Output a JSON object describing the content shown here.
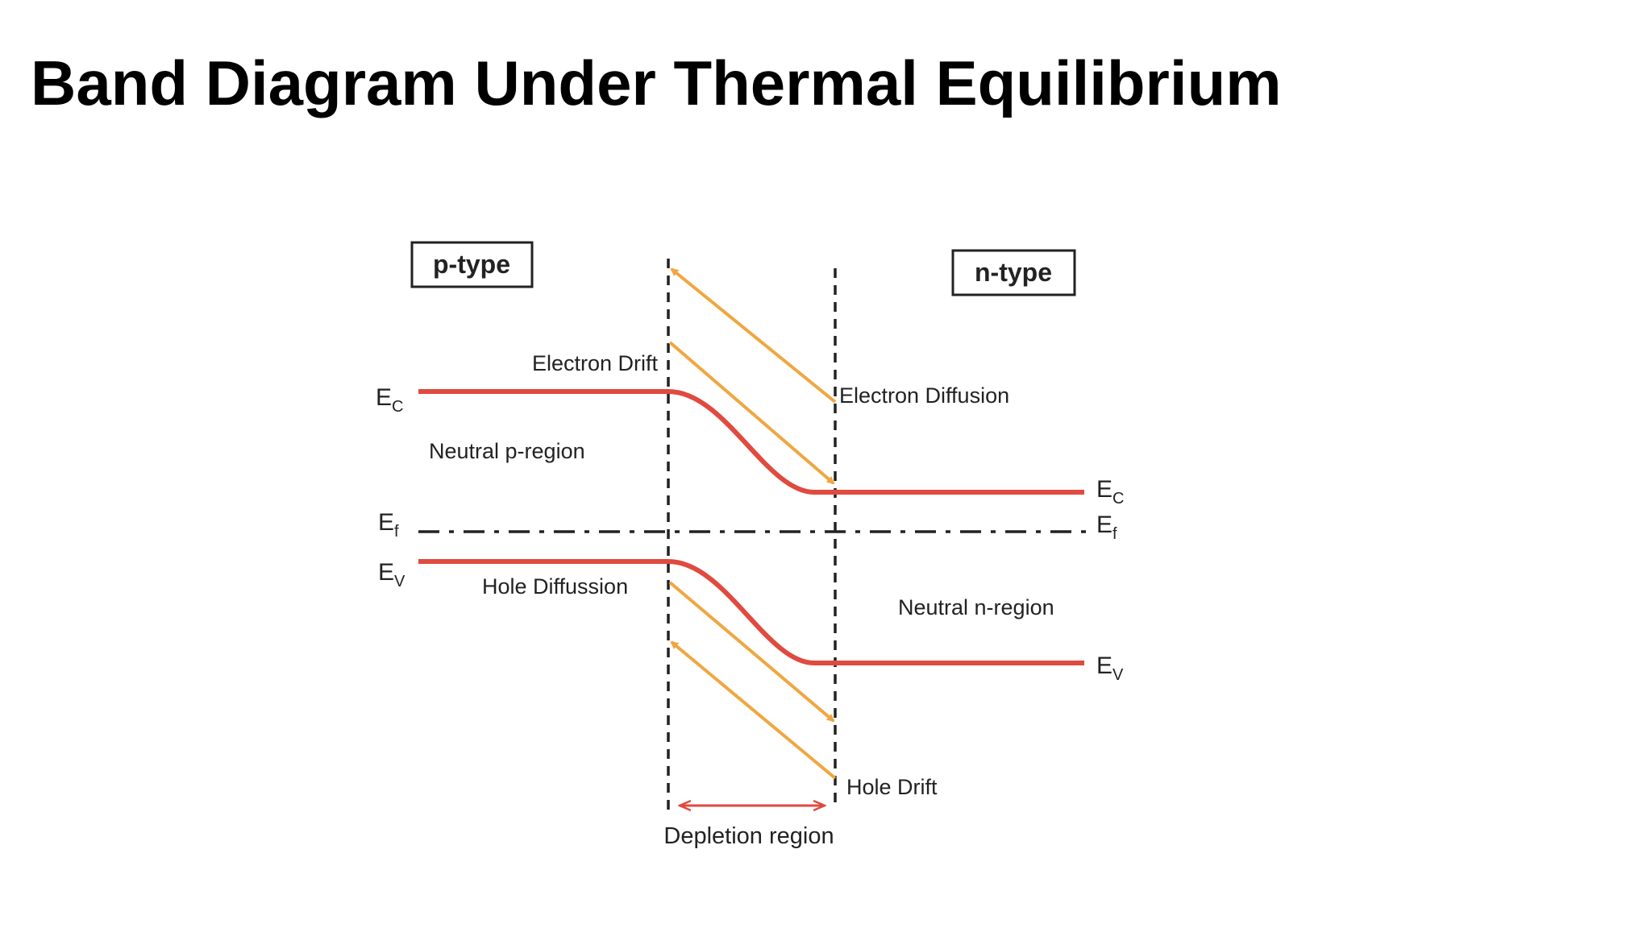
{
  "header": {
    "title": "Band Diagram Under Thermal Equilibrium"
  },
  "diagram": {
    "regions": {
      "p_type": "p-type",
      "n_type": "n-type"
    },
    "annotations": {
      "electron_drift": "Electron Drift",
      "electron_diffusion": "Electron Diffusion",
      "neutral_p": "Neutral p-region",
      "neutral_n": "Neutral n-region",
      "hole_diffusion": "Hole Diffussion",
      "hole_drift": "Hole Drift",
      "depletion": "Depletion region"
    },
    "levels": {
      "left": [
        {
          "main": "E",
          "sub": "C"
        },
        {
          "main": "E",
          "sub": "f"
        },
        {
          "main": "E",
          "sub": "V"
        }
      ],
      "right": [
        {
          "main": "E",
          "sub": "C"
        },
        {
          "main": "E",
          "sub": "f"
        },
        {
          "main": "E",
          "sub": "V"
        }
      ]
    }
  }
}
